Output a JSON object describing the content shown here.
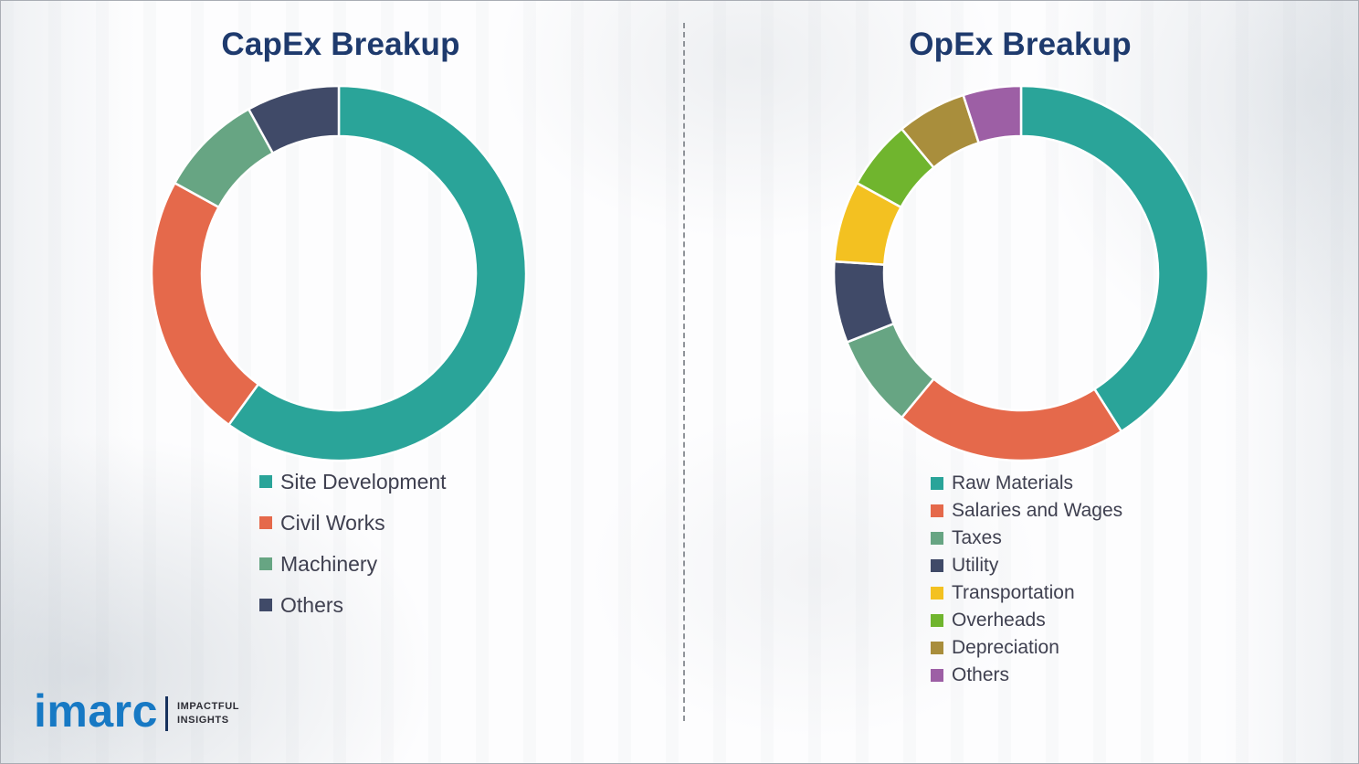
{
  "left_panel": {
    "title_ref": "CapEx Breakup"
  },
  "right_panel": {
    "title_ref": "OpEx Breakup"
  },
  "chart_data": [
    {
      "type": "donut",
      "title": "CapEx Breakup",
      "categories": [
        "Site Development",
        "Civil Works",
        "Machinery",
        "Others"
      ],
      "values": [
        60,
        23,
        9,
        8
      ],
      "values_note": "segment shares (%) estimated from arc angles; no numeric labels shown in image",
      "colors": [
        "#2aa499",
        "#e5694b",
        "#67a583",
        "#404a68"
      ],
      "legend_position": "below-chart-left-aligned",
      "hole_ratio": 0.73
    },
    {
      "type": "donut",
      "title": "OpEx Breakup",
      "categories": [
        "Raw Materials",
        "Salaries and Wages",
        "Taxes",
        "Utility",
        "Transportation",
        "Overheads",
        "Depreciation",
        "Others"
      ],
      "values": [
        41,
        20,
        8,
        7,
        7,
        6,
        6,
        5
      ],
      "values_note": "segment shares (%) estimated from arc angles; no numeric labels shown in image",
      "colors": [
        "#2aa499",
        "#e5694b",
        "#67a583",
        "#404a68",
        "#f3c121",
        "#70b52e",
        "#a98e3c",
        "#9d5fa5"
      ],
      "legend_position": "below-chart-left-aligned",
      "hole_ratio": 0.73
    }
  ],
  "logo": {
    "brand": "imarc",
    "tagline": [
      "IMPACTFUL",
      "INSIGHTS"
    ],
    "brand_color": "#1779c4"
  }
}
